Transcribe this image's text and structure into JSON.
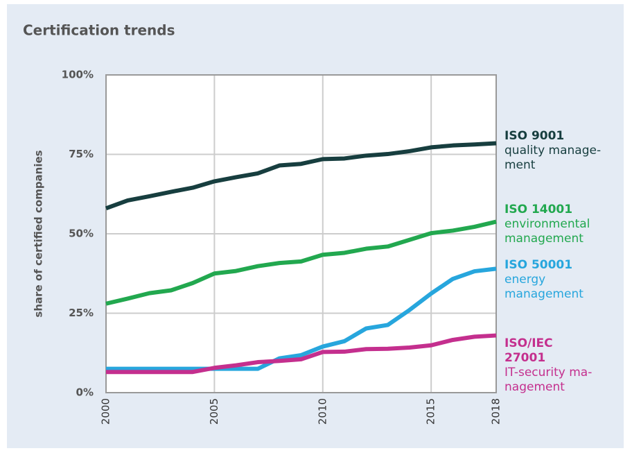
{
  "chart_data": {
    "type": "line",
    "title": "Certification trends",
    "y_label": "share of certified companies",
    "x": [
      2000,
      2001,
      2002,
      2003,
      2004,
      2005,
      2006,
      2007,
      2008,
      2009,
      2010,
      2011,
      2012,
      2013,
      2014,
      2015,
      2016,
      2017,
      2018
    ],
    "xlim": [
      2000,
      2018
    ],
    "xticks": [
      2000,
      2005,
      2010,
      2015,
      2018
    ],
    "ylim": [
      0,
      100
    ],
    "yticks": [
      {
        "value": 0,
        "label": "0%"
      },
      {
        "value": 25,
        "label": "25%"
      },
      {
        "value": 50,
        "label": "50%"
      },
      {
        "value": 75,
        "label": "75%"
      },
      {
        "value": 100,
        "label": "100%"
      }
    ],
    "grid": true,
    "series": [
      {
        "name": "ISO 9001",
        "description": [
          "quality manage-",
          "ment"
        ],
        "color": "#173e3f",
        "values": [
          58,
          60.5,
          61.8,
          63.2,
          64.5,
          66.5,
          67.8,
          69,
          71.5,
          72,
          73.5,
          73.7,
          74.6,
          75.1,
          76,
          77.2,
          77.8,
          78.1,
          78.5
        ]
      },
      {
        "name": "ISO 14001",
        "description": [
          "environmental",
          "management"
        ],
        "color": "#22a84f",
        "values": [
          28,
          29.6,
          31.3,
          32.2,
          34.5,
          37.5,
          38.3,
          39.8,
          40.8,
          41.3,
          43.4,
          44,
          45.3,
          46,
          48.1,
          50.2,
          51,
          52.2,
          53.8
        ]
      },
      {
        "name": "ISO 50001",
        "description": [
          "energy",
          "management"
        ],
        "color": "#27a6dd",
        "values": [
          7.5,
          7.5,
          7.5,
          7.5,
          7.5,
          7.5,
          7.5,
          7.5,
          10.8,
          11.8,
          14.5,
          16.2,
          20.2,
          21.3,
          26,
          31.2,
          35.8,
          38.2,
          39
        ]
      },
      {
        "name": "ISO/IEC 27001",
        "description": [
          "IT-security ma-",
          "nagement"
        ],
        "color": "#c42f8e",
        "values": [
          6.5,
          6.5,
          6.5,
          6.5,
          6.5,
          7.8,
          8.6,
          9.6,
          10,
          10.5,
          12.8,
          12.9,
          13.7,
          13.8,
          14.2,
          14.9,
          16.6,
          17.6,
          18
        ]
      }
    ]
  }
}
